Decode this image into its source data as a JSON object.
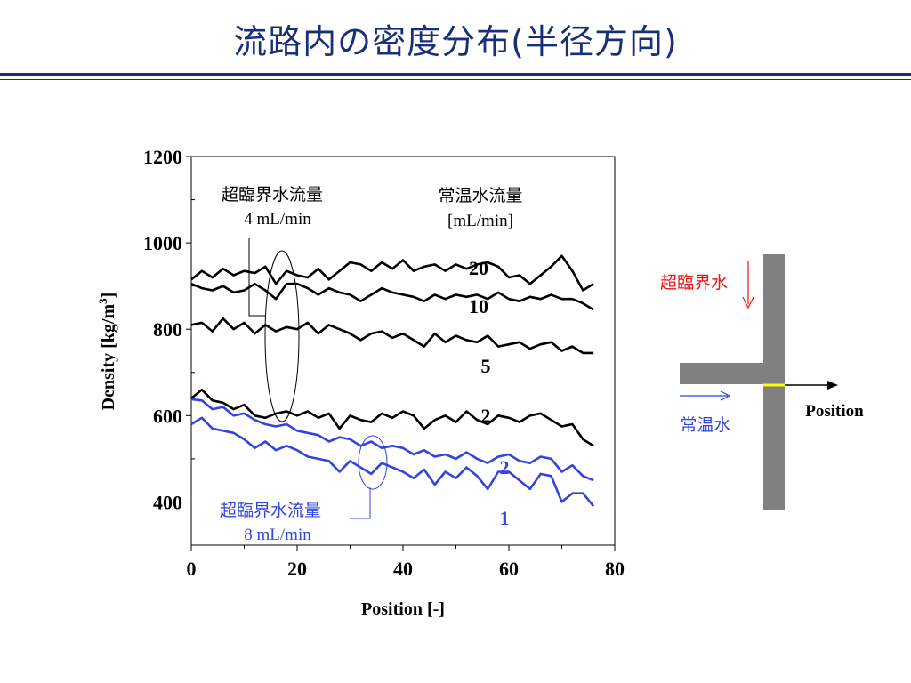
{
  "slide": {
    "title": "流路内の密度分布(半径方向)"
  },
  "chart_data": {
    "type": "line",
    "xlabel": "Position [-]",
    "ylabel": "Density [kg/m3]",
    "ylabel_main": "Density [kg/m",
    "ylabel_sup": "3",
    "ylabel_close": "]",
    "xlim": [
      0,
      80
    ],
    "ylim": [
      300,
      1200
    ],
    "xticks": [
      0,
      20,
      40,
      60,
      80
    ],
    "yticks": [
      400,
      600,
      800,
      1000,
      1200
    ],
    "legend_header": {
      "line1": "常温水流量",
      "line2": "[mL/min]"
    },
    "annotations": {
      "sc4": {
        "line1": "超臨界水流量",
        "line2": "4 mL/min"
      },
      "sc8": {
        "line1": "超臨界水流量",
        "line2": "8 mL/min"
      }
    },
    "series": [
      {
        "name": "20",
        "group": "4 mL/min",
        "color": "#000000",
        "x": [
          0,
          2,
          4,
          6,
          8,
          10,
          12,
          14,
          16,
          18,
          20,
          22,
          24,
          26,
          28,
          30,
          32,
          34,
          36,
          38,
          40,
          42,
          44,
          46,
          48,
          50,
          52,
          54,
          56,
          58,
          60,
          62,
          64,
          66,
          68,
          70,
          72,
          74,
          76
        ],
        "y": [
          915,
          935,
          920,
          940,
          925,
          935,
          930,
          945,
          905,
          935,
          925,
          920,
          940,
          915,
          935,
          955,
          950,
          935,
          955,
          940,
          960,
          935,
          945,
          950,
          935,
          950,
          940,
          950,
          955,
          945,
          920,
          925,
          905,
          925,
          945,
          970,
          935,
          890,
          905
        ]
      },
      {
        "name": "10",
        "group": "4 mL/min",
        "color": "#000000",
        "x": [
          0,
          2,
          4,
          6,
          8,
          10,
          12,
          14,
          16,
          18,
          20,
          22,
          24,
          26,
          28,
          30,
          32,
          34,
          36,
          38,
          40,
          42,
          44,
          46,
          48,
          50,
          52,
          54,
          56,
          58,
          60,
          62,
          64,
          66,
          68,
          70,
          72,
          74,
          76
        ],
        "y": [
          905,
          895,
          890,
          900,
          885,
          890,
          905,
          890,
          870,
          905,
          905,
          895,
          880,
          895,
          885,
          880,
          865,
          880,
          895,
          885,
          880,
          875,
          865,
          880,
          870,
          880,
          875,
          880,
          870,
          885,
          870,
          865,
          875,
          870,
          880,
          870,
          870,
          860,
          845
        ]
      },
      {
        "name": "5",
        "group": "4 mL/min",
        "color": "#000000",
        "x": [
          0,
          2,
          4,
          6,
          8,
          10,
          12,
          14,
          16,
          18,
          20,
          22,
          24,
          26,
          28,
          30,
          32,
          34,
          36,
          38,
          40,
          42,
          44,
          46,
          48,
          50,
          52,
          54,
          56,
          58,
          60,
          62,
          64,
          66,
          68,
          70,
          72,
          74,
          76
        ],
        "y": [
          810,
          815,
          795,
          825,
          800,
          815,
          790,
          810,
          795,
          805,
          800,
          815,
          790,
          810,
          800,
          790,
          775,
          790,
          795,
          780,
          790,
          775,
          760,
          790,
          770,
          785,
          775,
          770,
          785,
          760,
          765,
          770,
          755,
          765,
          770,
          750,
          760,
          745,
          745
        ]
      },
      {
        "name": "2",
        "group": "4 mL/min",
        "color": "#000000",
        "x": [
          0,
          2,
          4,
          6,
          8,
          10,
          12,
          14,
          16,
          18,
          20,
          22,
          24,
          26,
          28,
          30,
          32,
          34,
          36,
          38,
          40,
          42,
          44,
          46,
          48,
          50,
          52,
          54,
          56,
          58,
          60,
          62,
          64,
          66,
          68,
          70,
          72,
          74,
          76
        ],
        "y": [
          640,
          660,
          635,
          630,
          615,
          625,
          600,
          595,
          605,
          610,
          600,
          610,
          595,
          605,
          570,
          600,
          590,
          585,
          605,
          595,
          610,
          600,
          570,
          590,
          600,
          585,
          610,
          590,
          580,
          600,
          595,
          585,
          600,
          605,
          590,
          575,
          580,
          545,
          530
        ]
      },
      {
        "name": "2",
        "group": "8 mL/min",
        "color": "#3344dd",
        "x": [
          0,
          2,
          4,
          6,
          8,
          10,
          12,
          14,
          16,
          18,
          20,
          22,
          24,
          26,
          28,
          30,
          32,
          34,
          36,
          38,
          40,
          42,
          44,
          46,
          48,
          50,
          52,
          54,
          56,
          58,
          60,
          62,
          64,
          66,
          68,
          70,
          72,
          74,
          76
        ],
        "y": [
          638,
          635,
          615,
          620,
          600,
          605,
          590,
          580,
          575,
          580,
          565,
          560,
          555,
          540,
          550,
          545,
          530,
          540,
          525,
          530,
          525,
          510,
          520,
          505,
          510,
          500,
          515,
          500,
          490,
          505,
          510,
          495,
          490,
          505,
          500,
          470,
          485,
          460,
          450
        ]
      },
      {
        "name": "1",
        "group": "8 mL/min",
        "color": "#3344dd",
        "x": [
          0,
          2,
          4,
          6,
          8,
          10,
          12,
          14,
          16,
          18,
          20,
          22,
          24,
          26,
          28,
          30,
          32,
          34,
          36,
          38,
          40,
          42,
          44,
          46,
          48,
          50,
          52,
          54,
          56,
          58,
          60,
          62,
          64,
          66,
          68,
          70,
          72,
          74,
          76
        ],
        "y": [
          580,
          595,
          570,
          565,
          560,
          545,
          525,
          540,
          520,
          530,
          520,
          505,
          500,
          495,
          470,
          495,
          480,
          465,
          490,
          480,
          470,
          455,
          475,
          440,
          470,
          455,
          480,
          460,
          430,
          470,
          470,
          450,
          430,
          465,
          460,
          400,
          420,
          420,
          390
        ]
      }
    ]
  },
  "schematic": {
    "sc_label": "超臨界水",
    "rt_label": "常温水",
    "axis_label": "Position"
  }
}
